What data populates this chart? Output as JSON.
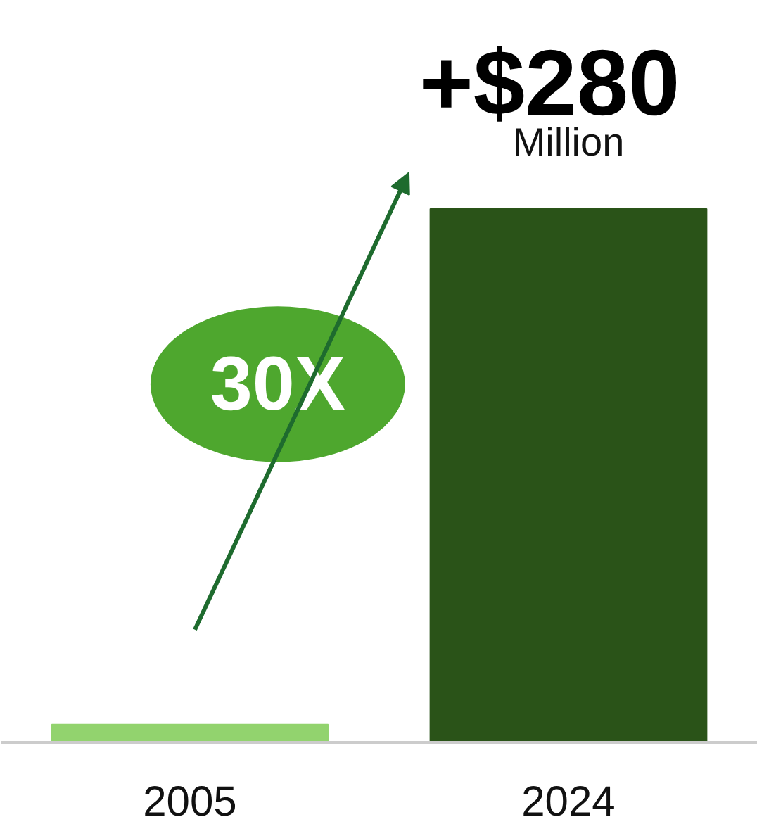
{
  "chart_data": {
    "type": "bar",
    "categories": [
      "2005",
      "2024"
    ],
    "values": [
      9.3,
      280
    ],
    "colors": [
      "#92d36e",
      "#2a5318"
    ],
    "value_labels": [
      null,
      "+$280"
    ],
    "annotations": [
      "Million",
      "30X"
    ],
    "grid": false
  }
}
